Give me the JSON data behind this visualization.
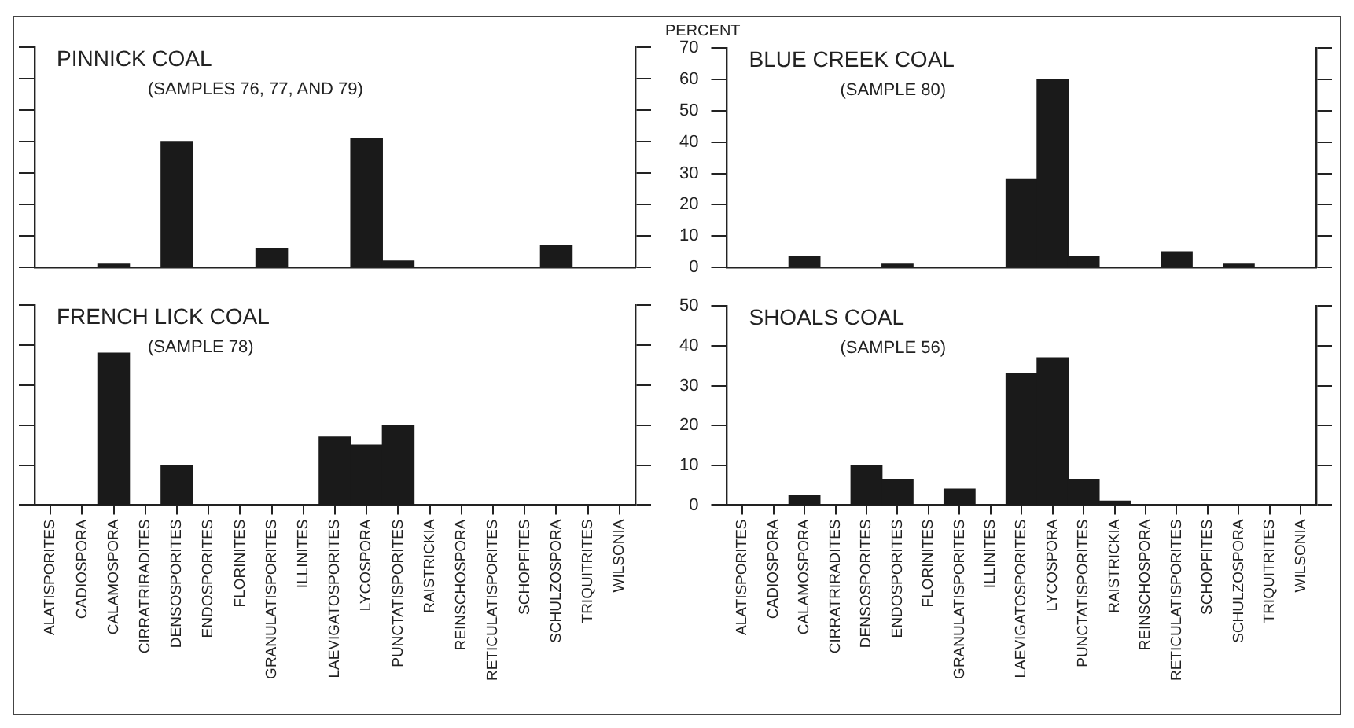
{
  "chart_data": [
    {
      "type": "bar",
      "title": "PINNICK COAL",
      "subtitle": "(SAMPLES 76, 77, AND 79)",
      "categories": [
        null,
        null,
        null,
        null,
        null,
        null,
        null,
        null,
        null,
        null,
        null,
        null,
        null,
        null,
        null,
        null,
        null,
        null,
        null
      ],
      "values": [
        null,
        null,
        1,
        null,
        40,
        null,
        null,
        6,
        null,
        null,
        41,
        2,
        null,
        null,
        null,
        null,
        7,
        null,
        null
      ],
      "color": "#1a1a1a",
      "ylim": [
        0,
        70
      ],
      "yticks": [
        0,
        10,
        20,
        30,
        40,
        50,
        60,
        70
      ],
      "tick_labels": false,
      "grid": false
    },
    {
      "type": "bar",
      "title": "BLUE CREEK COAL",
      "subtitle": "(SAMPLE 80)",
      "ylabel": "PERCENT",
      "categories": [
        null,
        null,
        null,
        null,
        null,
        null,
        null,
        null,
        null,
        null,
        null,
        null,
        null,
        null,
        null,
        null,
        null,
        null,
        null
      ],
      "values": [
        null,
        null,
        3.5,
        null,
        null,
        1,
        null,
        null,
        null,
        28,
        60,
        3.5,
        null,
        null,
        5,
        null,
        1,
        null,
        null
      ],
      "color": "#1a1a1a",
      "ylim": [
        0,
        70
      ],
      "yticks": [
        0,
        10,
        20,
        30,
        40,
        50,
        60,
        70
      ],
      "tick_labels": "y",
      "grid": false
    },
    {
      "type": "bar",
      "title": "FRENCH LICK COAL",
      "subtitle": "(SAMPLE 78)",
      "categories": [
        "ALATISPORITES",
        "CADIOSPORA",
        "CALAMOSPORA",
        "CIRRATRIRADITES",
        "DENSOSPORITES",
        "ENDOSPORITES",
        "FLORINITES",
        "GRANULATISPORITES",
        "ILLINITES",
        "LAEVIGATOSPORITES",
        "LYCOSPORA",
        "PUNCTATISPORITES",
        "RAISTRICKIA",
        "REINSCHOSPORA",
        "RETICULATISPORITES",
        "SCHOPFITES",
        "SCHULZOSPORA",
        "TRIQUITRITES",
        "WILSONIA"
      ],
      "values": [
        null,
        null,
        38,
        null,
        10,
        null,
        null,
        null,
        null,
        17,
        15,
        20,
        null,
        null,
        null,
        null,
        null,
        null,
        null
      ],
      "color": "#1a1a1a",
      "ylim": [
        0,
        50
      ],
      "yticks": [
        0,
        10,
        20,
        30,
        40,
        50
      ],
      "tick_labels": "x",
      "grid": false
    },
    {
      "type": "bar",
      "title": "SHOALS COAL",
      "subtitle": "(SAMPLE 56)",
      "categories": [
        "ALATISPORITES",
        "CADIOSPORA",
        "CALAMOSPORA",
        "CIRRATRIRADITES",
        "DENSOSPORITES",
        "ENDOSPORITES",
        "FLORINITES",
        "GRANULATISPORITES",
        "ILLINITES",
        "LAEVIGATOSPORITES",
        "LYCOSPORA",
        "PUNCTATISPORITES",
        "RAISTRICKIA",
        "REINSCHOSPORA",
        "RETICULATISPORITES",
        "SCHOPFITES",
        "SCHULZOSPORA",
        "TRIQUITRITES",
        "WILSONIA"
      ],
      "values": [
        null,
        null,
        2.5,
        null,
        10,
        6.5,
        null,
        4,
        null,
        33,
        37,
        6.5,
        1,
        null,
        null,
        null,
        null,
        null,
        null
      ],
      "color": "#1a1a1a",
      "ylim": [
        0,
        50
      ],
      "yticks": [
        0,
        10,
        20,
        30,
        40,
        50
      ],
      "grid": false
    }
  ]
}
